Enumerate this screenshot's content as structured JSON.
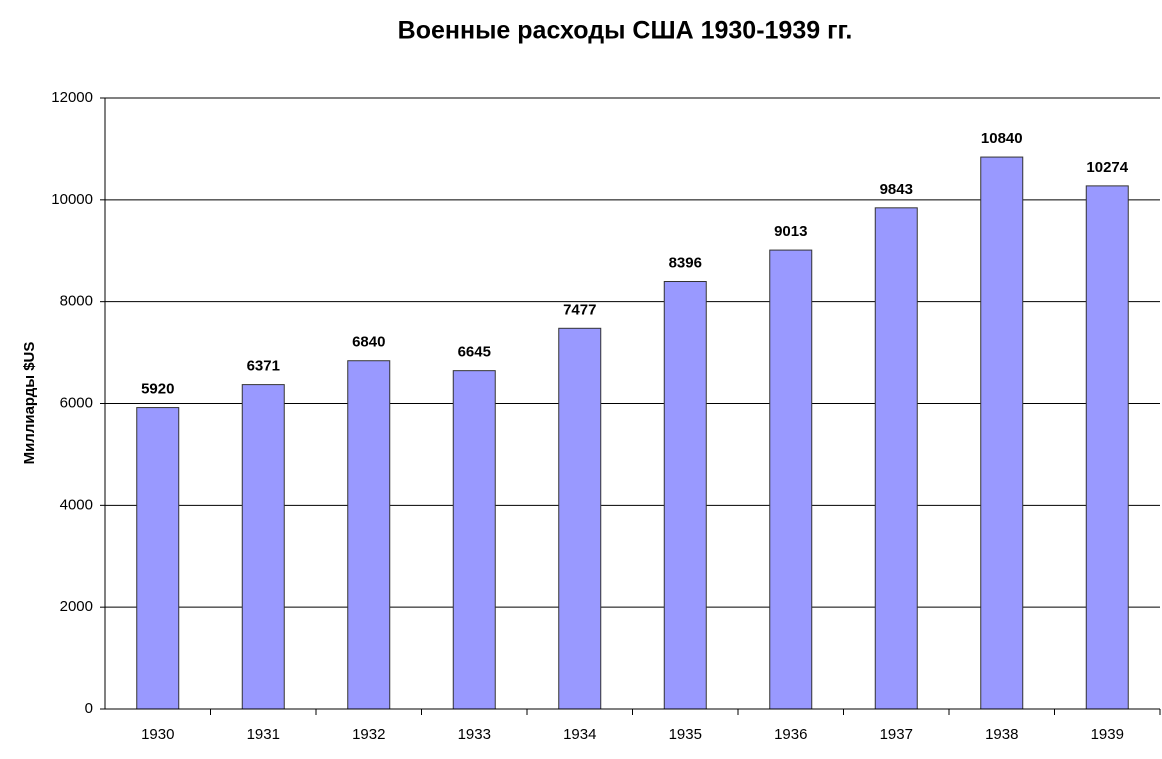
{
  "chart_data": {
    "type": "bar",
    "title": "Военные расходы США 1930-1939 гг.",
    "y_label": "Миллиарды $US",
    "categories": [
      "1930",
      "1931",
      "1932",
      "1933",
      "1934",
      "1935",
      "1936",
      "1937",
      "1938",
      "1939"
    ],
    "values": [
      5920,
      6371,
      6840,
      6645,
      7477,
      8396,
      9013,
      9843,
      10840,
      10274
    ],
    "color": "#9999ff",
    "ylim": [
      0,
      12000
    ],
    "yticks": [
      0,
      2000,
      4000,
      6000,
      8000,
      10000,
      12000
    ],
    "grid": true
  }
}
